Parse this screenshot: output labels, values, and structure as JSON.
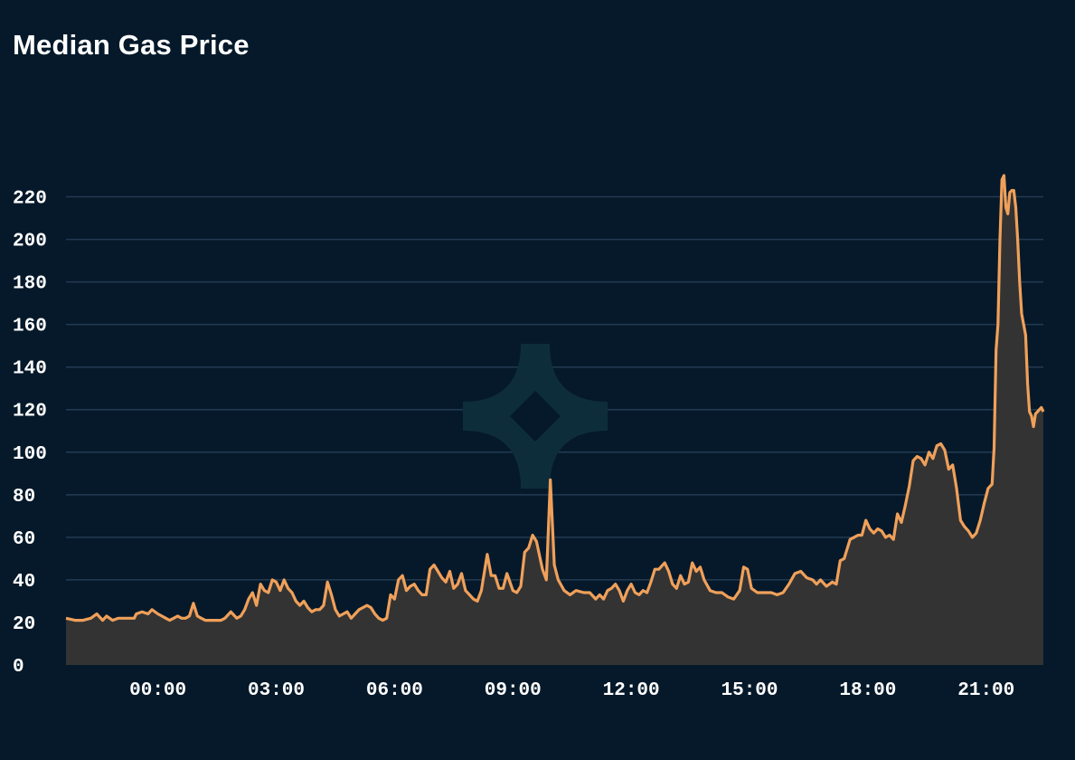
{
  "chart_data": {
    "type": "area",
    "title": "Median Gas Price",
    "xlabel": "",
    "ylabel": "",
    "ylim": [
      0,
      230
    ],
    "yticks": [
      0,
      20,
      40,
      60,
      80,
      100,
      120,
      140,
      160,
      180,
      200,
      220
    ],
    "xlim_hours": [
      -2.33,
      21.5
    ],
    "xticks": [
      {
        "label": "00:00",
        "hour": 0
      },
      {
        "label": "03:00",
        "hour": 3
      },
      {
        "label": "06:00",
        "hour": 6
      },
      {
        "label": "09:00",
        "hour": 9
      },
      {
        "label": "12:00",
        "hour": 12
      },
      {
        "label": "15:00",
        "hour": 15
      },
      {
        "label": "18:00",
        "hour": 18
      },
      {
        "label": "21:00",
        "hour": 21
      }
    ],
    "grid": true,
    "legend": "none",
    "colors": {
      "line": "#f0a05a",
      "fill": "#333333",
      "grid": "#233a52",
      "background": "#05192a",
      "watermark": "#0e2d3b"
    },
    "series": [
      {
        "points": [
          [
            -2.33,
            22
          ],
          [
            -2.1,
            21
          ],
          [
            -1.9,
            21
          ],
          [
            -1.7,
            22
          ],
          [
            -1.55,
            24
          ],
          [
            -1.4,
            21
          ],
          [
            -1.3,
            23
          ],
          [
            -1.15,
            21
          ],
          [
            -1.0,
            22
          ],
          [
            -0.8,
            22
          ],
          [
            -0.6,
            22
          ],
          [
            -0.55,
            24
          ],
          [
            -0.4,
            25
          ],
          [
            -0.25,
            24
          ],
          [
            -0.15,
            26
          ],
          [
            0.0,
            24
          ],
          [
            0.1,
            23
          ],
          [
            0.2,
            22
          ],
          [
            0.3,
            21
          ],
          [
            0.4,
            22
          ],
          [
            0.5,
            23
          ],
          [
            0.6,
            22
          ],
          [
            0.7,
            22
          ],
          [
            0.8,
            23
          ],
          [
            0.9,
            29
          ],
          [
            1.0,
            23
          ],
          [
            1.1,
            22
          ],
          [
            1.2,
            21
          ],
          [
            1.3,
            21
          ],
          [
            1.5,
            21
          ],
          [
            1.6,
            21
          ],
          [
            1.7,
            22
          ],
          [
            1.85,
            25
          ],
          [
            2.0,
            22
          ],
          [
            2.1,
            23
          ],
          [
            2.2,
            26
          ],
          [
            2.3,
            31
          ],
          [
            2.4,
            34
          ],
          [
            2.5,
            28
          ],
          [
            2.6,
            38
          ],
          [
            2.7,
            35
          ],
          [
            2.8,
            34
          ],
          [
            2.9,
            40
          ],
          [
            3.0,
            39
          ],
          [
            3.1,
            35
          ],
          [
            3.2,
            40
          ],
          [
            3.3,
            36
          ],
          [
            3.4,
            34
          ],
          [
            3.5,
            30
          ],
          [
            3.6,
            28
          ],
          [
            3.7,
            30
          ],
          [
            3.8,
            27
          ],
          [
            3.9,
            25
          ],
          [
            4.0,
            26
          ],
          [
            4.1,
            26
          ],
          [
            4.2,
            28
          ],
          [
            4.3,
            39
          ],
          [
            4.4,
            33
          ],
          [
            4.5,
            26
          ],
          [
            4.6,
            23
          ],
          [
            4.7,
            24
          ],
          [
            4.8,
            25
          ],
          [
            4.9,
            22
          ],
          [
            5.0,
            24
          ],
          [
            5.1,
            26
          ],
          [
            5.2,
            27
          ],
          [
            5.3,
            28
          ],
          [
            5.4,
            27
          ],
          [
            5.5,
            24
          ],
          [
            5.6,
            22
          ],
          [
            5.7,
            21
          ],
          [
            5.8,
            22
          ],
          [
            5.9,
            33
          ],
          [
            6.0,
            31
          ],
          [
            6.1,
            40
          ],
          [
            6.2,
            42
          ],
          [
            6.3,
            35
          ],
          [
            6.4,
            37
          ],
          [
            6.5,
            38
          ],
          [
            6.6,
            35
          ],
          [
            6.7,
            33
          ],
          [
            6.8,
            33
          ],
          [
            6.9,
            45
          ],
          [
            7.0,
            47
          ],
          [
            7.1,
            44
          ],
          [
            7.2,
            41
          ],
          [
            7.3,
            39
          ],
          [
            7.4,
            44
          ],
          [
            7.5,
            36
          ],
          [
            7.6,
            38
          ],
          [
            7.7,
            43
          ],
          [
            7.8,
            35
          ],
          [
            7.9,
            33
          ],
          [
            8.0,
            31
          ],
          [
            8.1,
            30
          ],
          [
            8.2,
            35
          ],
          [
            8.35,
            52
          ],
          [
            8.45,
            42
          ],
          [
            8.55,
            42
          ],
          [
            8.65,
            36
          ],
          [
            8.75,
            36
          ],
          [
            8.85,
            43
          ],
          [
            9.0,
            35
          ],
          [
            9.1,
            34
          ],
          [
            9.2,
            37
          ],
          [
            9.3,
            53
          ],
          [
            9.4,
            55
          ],
          [
            9.5,
            61
          ],
          [
            9.6,
            58
          ],
          [
            9.75,
            45
          ],
          [
            9.85,
            40
          ],
          [
            9.95,
            87
          ],
          [
            10.05,
            47
          ],
          [
            10.15,
            40
          ],
          [
            10.3,
            35
          ],
          [
            10.45,
            33
          ],
          [
            10.6,
            35
          ],
          [
            10.8,
            34
          ],
          [
            10.95,
            34
          ],
          [
            11.1,
            31
          ],
          [
            11.2,
            33
          ],
          [
            11.3,
            31
          ],
          [
            11.4,
            35
          ],
          [
            11.5,
            36
          ],
          [
            11.6,
            38
          ],
          [
            11.7,
            35
          ],
          [
            11.8,
            30
          ],
          [
            11.9,
            35
          ],
          [
            12.0,
            38
          ],
          [
            12.1,
            34
          ],
          [
            12.2,
            33
          ],
          [
            12.3,
            35
          ],
          [
            12.4,
            34
          ],
          [
            12.5,
            39
          ],
          [
            12.6,
            45
          ],
          [
            12.7,
            45
          ],
          [
            12.85,
            48
          ],
          [
            12.95,
            44
          ],
          [
            13.05,
            38
          ],
          [
            13.15,
            36
          ],
          [
            13.25,
            42
          ],
          [
            13.35,
            38
          ],
          [
            13.45,
            39
          ],
          [
            13.55,
            48
          ],
          [
            13.65,
            44
          ],
          [
            13.75,
            46
          ],
          [
            13.85,
            40
          ],
          [
            14.0,
            35
          ],
          [
            14.15,
            34
          ],
          [
            14.3,
            34
          ],
          [
            14.45,
            32
          ],
          [
            14.6,
            31
          ],
          [
            14.75,
            35
          ],
          [
            14.85,
            46
          ],
          [
            14.95,
            45
          ],
          [
            15.05,
            36
          ],
          [
            15.2,
            34
          ],
          [
            15.4,
            34
          ],
          [
            15.55,
            34
          ],
          [
            15.7,
            33
          ],
          [
            15.85,
            34
          ],
          [
            16.0,
            38
          ],
          [
            16.15,
            43
          ],
          [
            16.3,
            44
          ],
          [
            16.45,
            41
          ],
          [
            16.6,
            40
          ],
          [
            16.7,
            38
          ],
          [
            16.8,
            40
          ],
          [
            16.95,
            37
          ],
          [
            17.1,
            39
          ],
          [
            17.2,
            38
          ],
          [
            17.3,
            49
          ],
          [
            17.4,
            50
          ],
          [
            17.55,
            59
          ],
          [
            17.65,
            60
          ],
          [
            17.75,
            61
          ],
          [
            17.85,
            61
          ],
          [
            17.95,
            68
          ],
          [
            18.05,
            64
          ],
          [
            18.15,
            62
          ],
          [
            18.25,
            64
          ],
          [
            18.35,
            63
          ],
          [
            18.45,
            60
          ],
          [
            18.55,
            61
          ],
          [
            18.65,
            59
          ],
          [
            18.75,
            71
          ],
          [
            18.85,
            67
          ],
          [
            18.95,
            75
          ],
          [
            19.05,
            84
          ],
          [
            19.15,
            96
          ],
          [
            19.25,
            98
          ],
          [
            19.35,
            97
          ],
          [
            19.45,
            94
          ],
          [
            19.55,
            100
          ],
          [
            19.65,
            97
          ],
          [
            19.75,
            103
          ],
          [
            19.85,
            104
          ],
          [
            19.95,
            101
          ],
          [
            20.05,
            92
          ],
          [
            20.15,
            94
          ],
          [
            20.25,
            83
          ],
          [
            20.35,
            68
          ],
          [
            20.45,
            65
          ],
          [
            20.55,
            63
          ],
          [
            20.65,
            60
          ],
          [
            20.75,
            62
          ],
          [
            20.85,
            68
          ],
          [
            20.95,
            76
          ],
          [
            21.05,
            83
          ],
          [
            21.15,
            85
          ],
          [
            21.2,
            102
          ],
          [
            21.25,
            148
          ],
          [
            21.3,
            160
          ],
          [
            21.35,
            200
          ],
          [
            21.4,
            228
          ],
          [
            21.45,
            230
          ],
          [
            21.5,
            215
          ],
          [
            21.55,
            212
          ],
          [
            21.6,
            222
          ],
          [
            21.65,
            223
          ],
          [
            21.7,
            223
          ],
          [
            21.75,
            215
          ],
          [
            21.8,
            200
          ],
          [
            21.85,
            180
          ],
          [
            21.9,
            165
          ],
          [
            21.95,
            160
          ],
          [
            22.0,
            155
          ],
          [
            22.05,
            132
          ],
          [
            22.1,
            119
          ],
          [
            22.15,
            117
          ],
          [
            22.2,
            112
          ],
          [
            22.25,
            118
          ],
          [
            22.3,
            119
          ],
          [
            22.35,
            120
          ],
          [
            22.4,
            121
          ],
          [
            22.45,
            119
          ]
        ]
      }
    ]
  }
}
